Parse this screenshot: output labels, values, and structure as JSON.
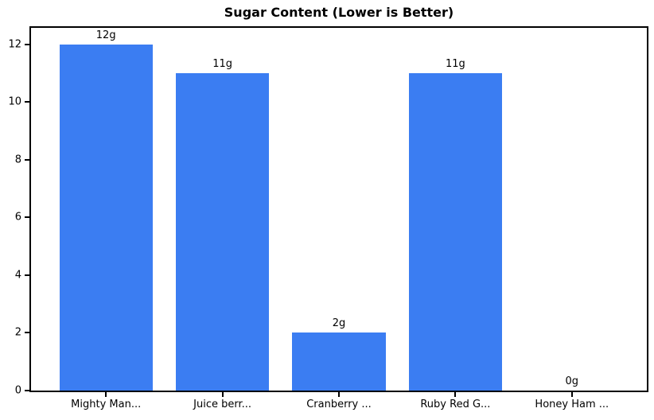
{
  "chart_data": {
    "type": "bar",
    "title": "Sugar Content (Lower is Better)",
    "categories": [
      "Mighty Man...",
      "Juice berr...",
      "Cranberry ...",
      "Ruby Red G...",
      "Honey Ham ..."
    ],
    "values": [
      12,
      11,
      2,
      11,
      0
    ],
    "value_labels": [
      "12g",
      "11g",
      "2g",
      "11g",
      "0g"
    ],
    "yticks": [
      0,
      2,
      4,
      6,
      8,
      10,
      12
    ],
    "ylim": [
      0,
      12.57
    ],
    "bar_color": "#3b7df2",
    "axis_color": "#000000",
    "background_color": "#ffffff",
    "grid": false,
    "legend": "none",
    "xlabel": "",
    "ylabel": ""
  }
}
